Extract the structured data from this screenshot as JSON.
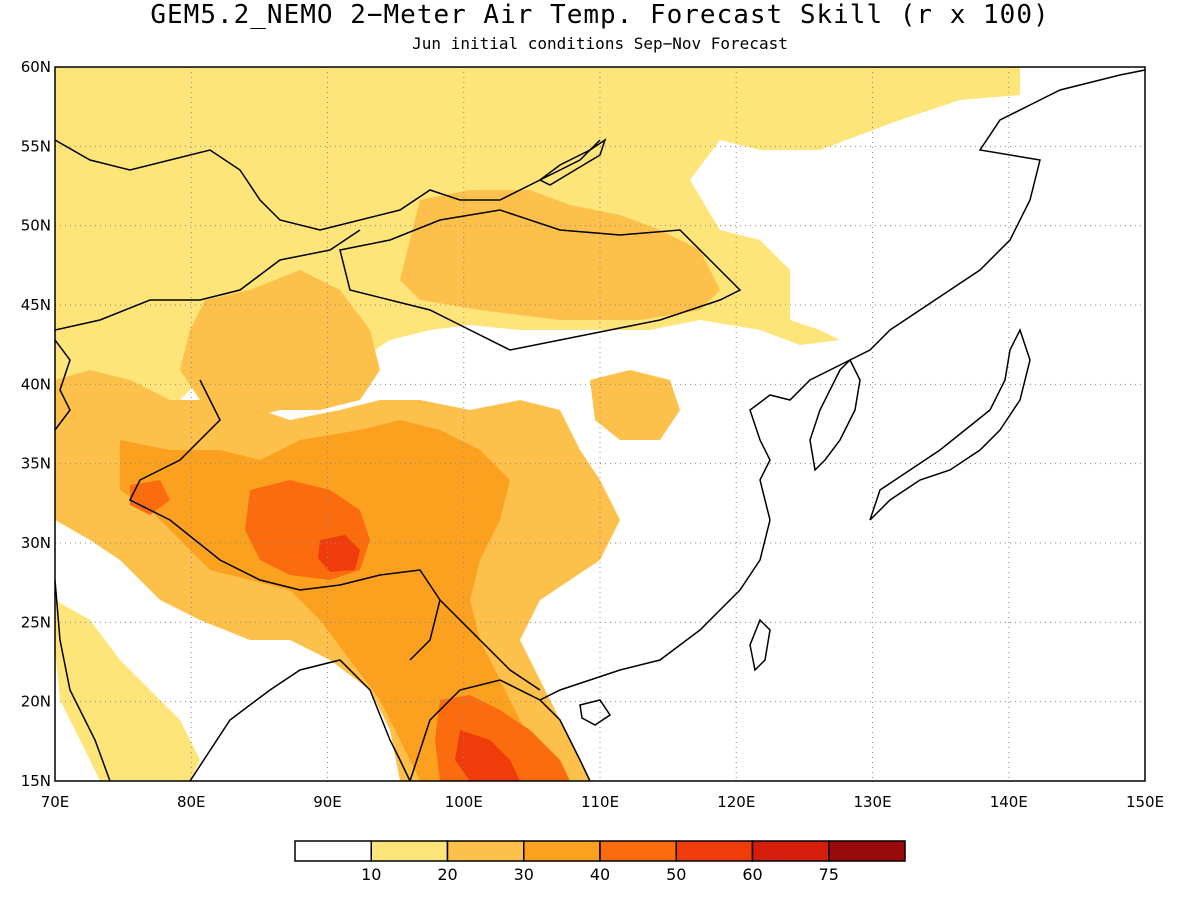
{
  "title": "GEM5.2_NEMO 2−Meter Air Temp. Forecast Skill (r x 100)",
  "subtitle": "Jun initial conditions  Sep−Nov Forecast",
  "map": {
    "lon_range": [
      70,
      150
    ],
    "lat_range": [
      15,
      60
    ],
    "lon_ticks": [
      "70E",
      "80E",
      "90E",
      "100E",
      "110E",
      "120E",
      "130E",
      "140E",
      "150E"
    ],
    "lat_ticks": [
      "60N",
      "55N",
      "50N",
      "45N",
      "40N",
      "35N",
      "30N",
      "25N",
      "20N",
      "15N"
    ],
    "grid": true
  },
  "colorbar": {
    "labels": [
      "10",
      "20",
      "30",
      "40",
      "50",
      "60",
      "75"
    ],
    "colors": [
      "#ffffff",
      "#fee57a",
      "#fdc04a",
      "#fca11f",
      "#fb6c0f",
      "#f03b0b",
      "#d41d0b",
      "#9b0a0a"
    ]
  },
  "palette": {
    "c10": "#fee57a",
    "c20": "#fdc04a",
    "c30": "#fca11f",
    "c40": "#fb6c0f",
    "c50": "#f03b0b",
    "c60": "#d41d0b"
  }
}
